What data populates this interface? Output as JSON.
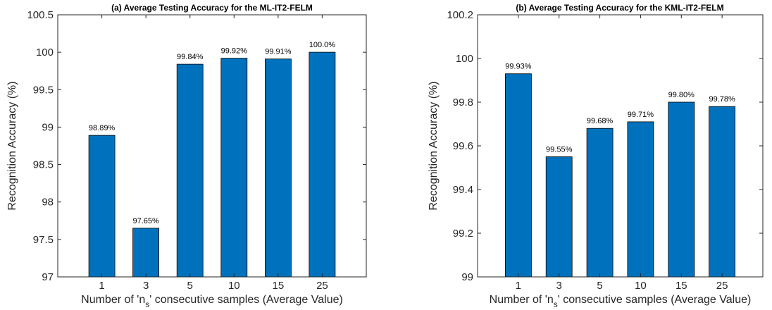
{
  "chart_data": [
    {
      "type": "bar",
      "title": "(a) Average Testing Accuracy for the ML-IT2-FELM",
      "xlabel_parts": [
        "Number of 'n",
        "s",
        "' consecutive samples (Average Value)"
      ],
      "ylabel": "Recognition Accuracy (%)",
      "categories": [
        "1",
        "3",
        "5",
        "10",
        "15",
        "25"
      ],
      "values": [
        98.89,
        97.65,
        99.84,
        99.92,
        99.91,
        100.0
      ],
      "data_labels": [
        "98.89%",
        "97.65%",
        "99.84%",
        "99.92%",
        "99.91%",
        "100.0%"
      ],
      "ylim": [
        97,
        100.5
      ],
      "yticks": [
        "97",
        "97.5",
        "98",
        "98.5",
        "99",
        "99.5",
        "100",
        "100.5"
      ],
      "bar_color": "#0072BD",
      "grid": false,
      "legend": "none"
    },
    {
      "type": "bar",
      "title": "(b) Average Testing Accuracy for the KML-IT2-FELM",
      "xlabel_parts": [
        "Number of 'n",
        "s",
        "' consecutive samples (Average Value)"
      ],
      "ylabel": "Recognition Accuracy (%)",
      "categories": [
        "1",
        "3",
        "5",
        "10",
        "15",
        "25"
      ],
      "values": [
        99.93,
        99.55,
        99.68,
        99.71,
        99.8,
        99.78
      ],
      "data_labels": [
        "99.93%",
        "99.55%",
        "99.68%",
        "99.71%",
        "99.80%",
        "99.78%"
      ],
      "ylim": [
        99,
        100.2
      ],
      "yticks": [
        "99",
        "99.2",
        "99.4",
        "99.6",
        "99.8",
        "100",
        "100.2"
      ],
      "bar_color": "#0072BD",
      "grid": false,
      "legend": "none"
    }
  ]
}
